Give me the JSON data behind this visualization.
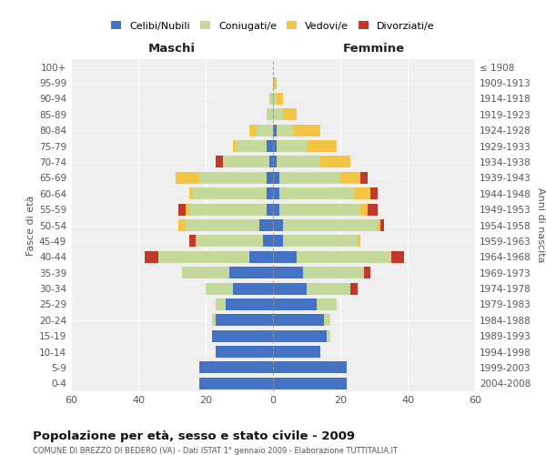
{
  "age_groups": [
    "0-4",
    "5-9",
    "10-14",
    "15-19",
    "20-24",
    "25-29",
    "30-34",
    "35-39",
    "40-44",
    "45-49",
    "50-54",
    "55-59",
    "60-64",
    "65-69",
    "70-74",
    "75-79",
    "80-84",
    "85-89",
    "90-94",
    "95-99",
    "100+"
  ],
  "birth_years": [
    "2004-2008",
    "1999-2003",
    "1994-1998",
    "1989-1993",
    "1984-1988",
    "1979-1983",
    "1974-1978",
    "1969-1973",
    "1964-1968",
    "1959-1963",
    "1954-1958",
    "1949-1953",
    "1944-1948",
    "1939-1943",
    "1934-1938",
    "1929-1933",
    "1924-1928",
    "1919-1923",
    "1914-1918",
    "1909-1913",
    "≤ 1908"
  ],
  "male": {
    "celibi": [
      22,
      22,
      17,
      18,
      17,
      14,
      12,
      13,
      7,
      3,
      4,
      2,
      2,
      2,
      1,
      2,
      0,
      0,
      0,
      0,
      0
    ],
    "coniugati": [
      0,
      0,
      0,
      0,
      1,
      3,
      8,
      14,
      27,
      20,
      22,
      23,
      22,
      20,
      14,
      9,
      5,
      2,
      1,
      0,
      0
    ],
    "vedovi": [
      0,
      0,
      0,
      0,
      0,
      0,
      0,
      0,
      0,
      0,
      2,
      1,
      1,
      7,
      0,
      1,
      2,
      0,
      0,
      0,
      0
    ],
    "divorziati": [
      0,
      0,
      0,
      0,
      0,
      0,
      0,
      0,
      4,
      2,
      0,
      2,
      0,
      0,
      2,
      0,
      0,
      0,
      0,
      0,
      0
    ]
  },
  "female": {
    "nubili": [
      22,
      22,
      14,
      16,
      15,
      13,
      10,
      9,
      7,
      3,
      3,
      2,
      2,
      2,
      1,
      1,
      1,
      0,
      0,
      0,
      0
    ],
    "coniugate": [
      0,
      0,
      0,
      1,
      2,
      6,
      13,
      18,
      28,
      22,
      28,
      24,
      22,
      18,
      13,
      9,
      5,
      3,
      1,
      0,
      0
    ],
    "vedove": [
      0,
      0,
      0,
      0,
      0,
      0,
      0,
      0,
      0,
      1,
      1,
      2,
      5,
      6,
      9,
      9,
      8,
      4,
      2,
      1,
      0
    ],
    "divorziate": [
      0,
      0,
      0,
      0,
      0,
      0,
      2,
      2,
      4,
      0,
      1,
      3,
      2,
      2,
      0,
      0,
      0,
      0,
      0,
      0,
      0
    ]
  },
  "colors": {
    "celibi": "#4472C4",
    "coniugati": "#C5D99A",
    "vedovi": "#F4C542",
    "divorziati": "#C0392B"
  },
  "title": "Popolazione per età, sesso e stato civile - 2009",
  "subtitle": "COMUNE DI BREZZO DI BEDERO (VA) - Dati ISTAT 1° gennaio 2009 - Elaborazione TUTTITALIA.IT",
  "xlabel_left": "Maschi",
  "xlabel_right": "Femmine",
  "ylabel_left": "Fasce di età",
  "ylabel_right": "Anni di nascita",
  "xlim": 60,
  "bg_plot": "#efefef",
  "bg_fig": "#ffffff",
  "legend_labels": [
    "Celibi/Nubili",
    "Coniugati/e",
    "Vedovi/e",
    "Divorziati/e"
  ]
}
